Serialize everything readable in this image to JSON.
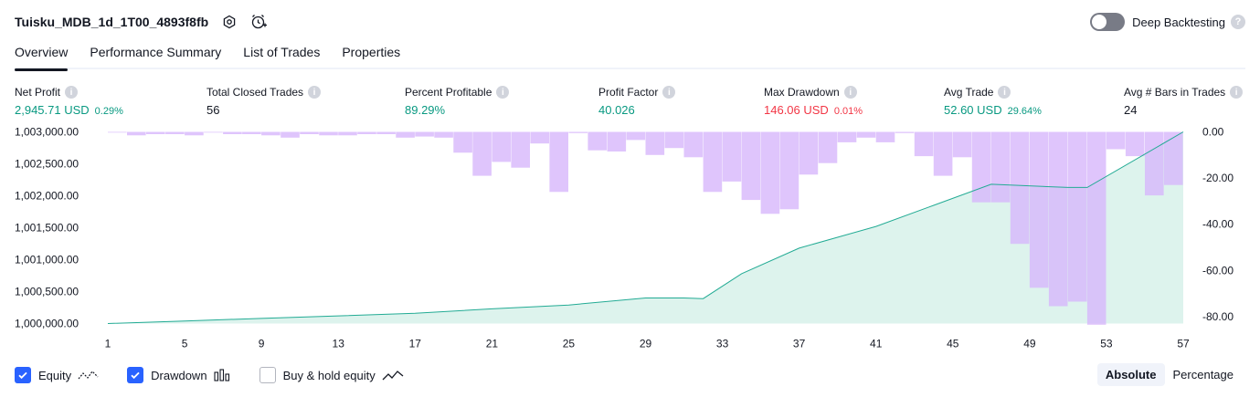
{
  "header": {
    "title": "Tuisku_MDB_1d_1T00_4893f8fb",
    "deep_backtesting_label": "Deep Backtesting",
    "deep_backtesting_enabled": false,
    "help_glyph": "?"
  },
  "tabs": [
    {
      "label": "Overview",
      "active": true
    },
    {
      "label": "Performance Summary",
      "active": false
    },
    {
      "label": "List of Trades",
      "active": false
    },
    {
      "label": "Properties",
      "active": false
    }
  ],
  "stats": {
    "net_profit": {
      "label": "Net Profit",
      "value": "2,945.71 USD",
      "sub": "0.29%"
    },
    "total_closed_trades": {
      "label": "Total Closed Trades",
      "value": "56"
    },
    "percent_profitable": {
      "label": "Percent Profitable",
      "value": "89.29%"
    },
    "profit_factor": {
      "label": "Profit Factor",
      "value": "40.026"
    },
    "max_drawdown": {
      "label": "Max Drawdown",
      "value": "146.06 USD",
      "sub": "0.01%"
    },
    "avg_trade": {
      "label": "Avg Trade",
      "value": "52.60 USD",
      "sub": "29.64%"
    },
    "avg_bars": {
      "label": "Avg # Bars in Trades",
      "value": "24"
    }
  },
  "colors": {
    "positive": "#089981",
    "negative": "#f23645",
    "equity_line": "#22ab94",
    "equity_fill": "#d7f1ea",
    "drawdown_bar": "#d7b7fb",
    "overlap_bar": "#a7b2ec",
    "accent": "#2962ff"
  },
  "chart_data": {
    "type": "line",
    "x_ticks": [
      "1",
      "5",
      "9",
      "13",
      "17",
      "21",
      "25",
      "29",
      "33",
      "37",
      "41",
      "45",
      "49",
      "53",
      "57"
    ],
    "left_ticks": [
      "1,003,000.00",
      "1,002,500.00",
      "1,002,000.00",
      "1,001,500.00",
      "1,001,000.00",
      "1,000,500.00",
      "1,000,000.00"
    ],
    "right_ticks": [
      "0.00",
      "-20.00",
      "-40.00",
      "-60.00",
      "-80.00"
    ],
    "x_range": [
      1,
      57
    ],
    "ylim_left": [
      1000000,
      1003000
    ],
    "ylim_right": [
      -83,
      0
    ],
    "series": [
      {
        "name": "Equity",
        "axis": "left",
        "x": [
          1,
          5,
          9,
          13,
          17,
          21,
          25,
          29,
          31,
          32,
          34,
          37,
          41,
          44,
          47,
          51,
          52,
          57
        ],
        "values": [
          1000000,
          1000040,
          1000080,
          1000120,
          1000160,
          1000230,
          1000290,
          1000400,
          1000400,
          1000390,
          1000780,
          1001180,
          1001520,
          1001850,
          1002180,
          1002130,
          1002130,
          1003000
        ]
      },
      {
        "name": "Drawdown",
        "axis": "right",
        "x": [
          2,
          3,
          4,
          5,
          6,
          7,
          8,
          9,
          10,
          11,
          12,
          13,
          14,
          15,
          16,
          17,
          18,
          19,
          20,
          21,
          22,
          23,
          24,
          25,
          26,
          27,
          28,
          29,
          30,
          31,
          32,
          33,
          34,
          35,
          36,
          37,
          38,
          39,
          40,
          41,
          42,
          43,
          44,
          45,
          46,
          47,
          48,
          49,
          50,
          51,
          52,
          53,
          54,
          55,
          56,
          57
        ],
        "values": [
          0,
          -1.5,
          -1,
          -1,
          -1.5,
          0,
          -1,
          -1,
          -1.5,
          -2.5,
          -1,
          -1.5,
          -1.5,
          -1,
          -1,
          -2.5,
          -2,
          -2.5,
          -9,
          -19,
          -13,
          -15.5,
          -5,
          -26,
          -0.5,
          -8,
          -8.5,
          -3.5,
          -10,
          -7,
          -11,
          -26,
          -21.5,
          -29.5,
          -35.5,
          -33.5,
          -18.5,
          -13.5,
          -4.5,
          -2.5,
          -4.5,
          -0.5,
          -10.5,
          -19,
          -11,
          -30.5,
          -30.5,
          -48.5,
          -67.5,
          -75.5,
          -73.5,
          -83.5,
          -7.5,
          -10.5,
          -27.5,
          -23
        ]
      }
    ],
    "grid": false
  },
  "legend": [
    {
      "label": "Equity",
      "checked": true,
      "icon": "equity-line-icon"
    },
    {
      "label": "Drawdown",
      "checked": true,
      "icon": "drawdown-bars-icon"
    },
    {
      "label": "Buy & hold equity",
      "checked": false,
      "icon": "buy-hold-line-icon"
    }
  ],
  "scale_switch": {
    "absolute": "Absolute",
    "percentage": "Percentage",
    "selected": "absolute"
  }
}
